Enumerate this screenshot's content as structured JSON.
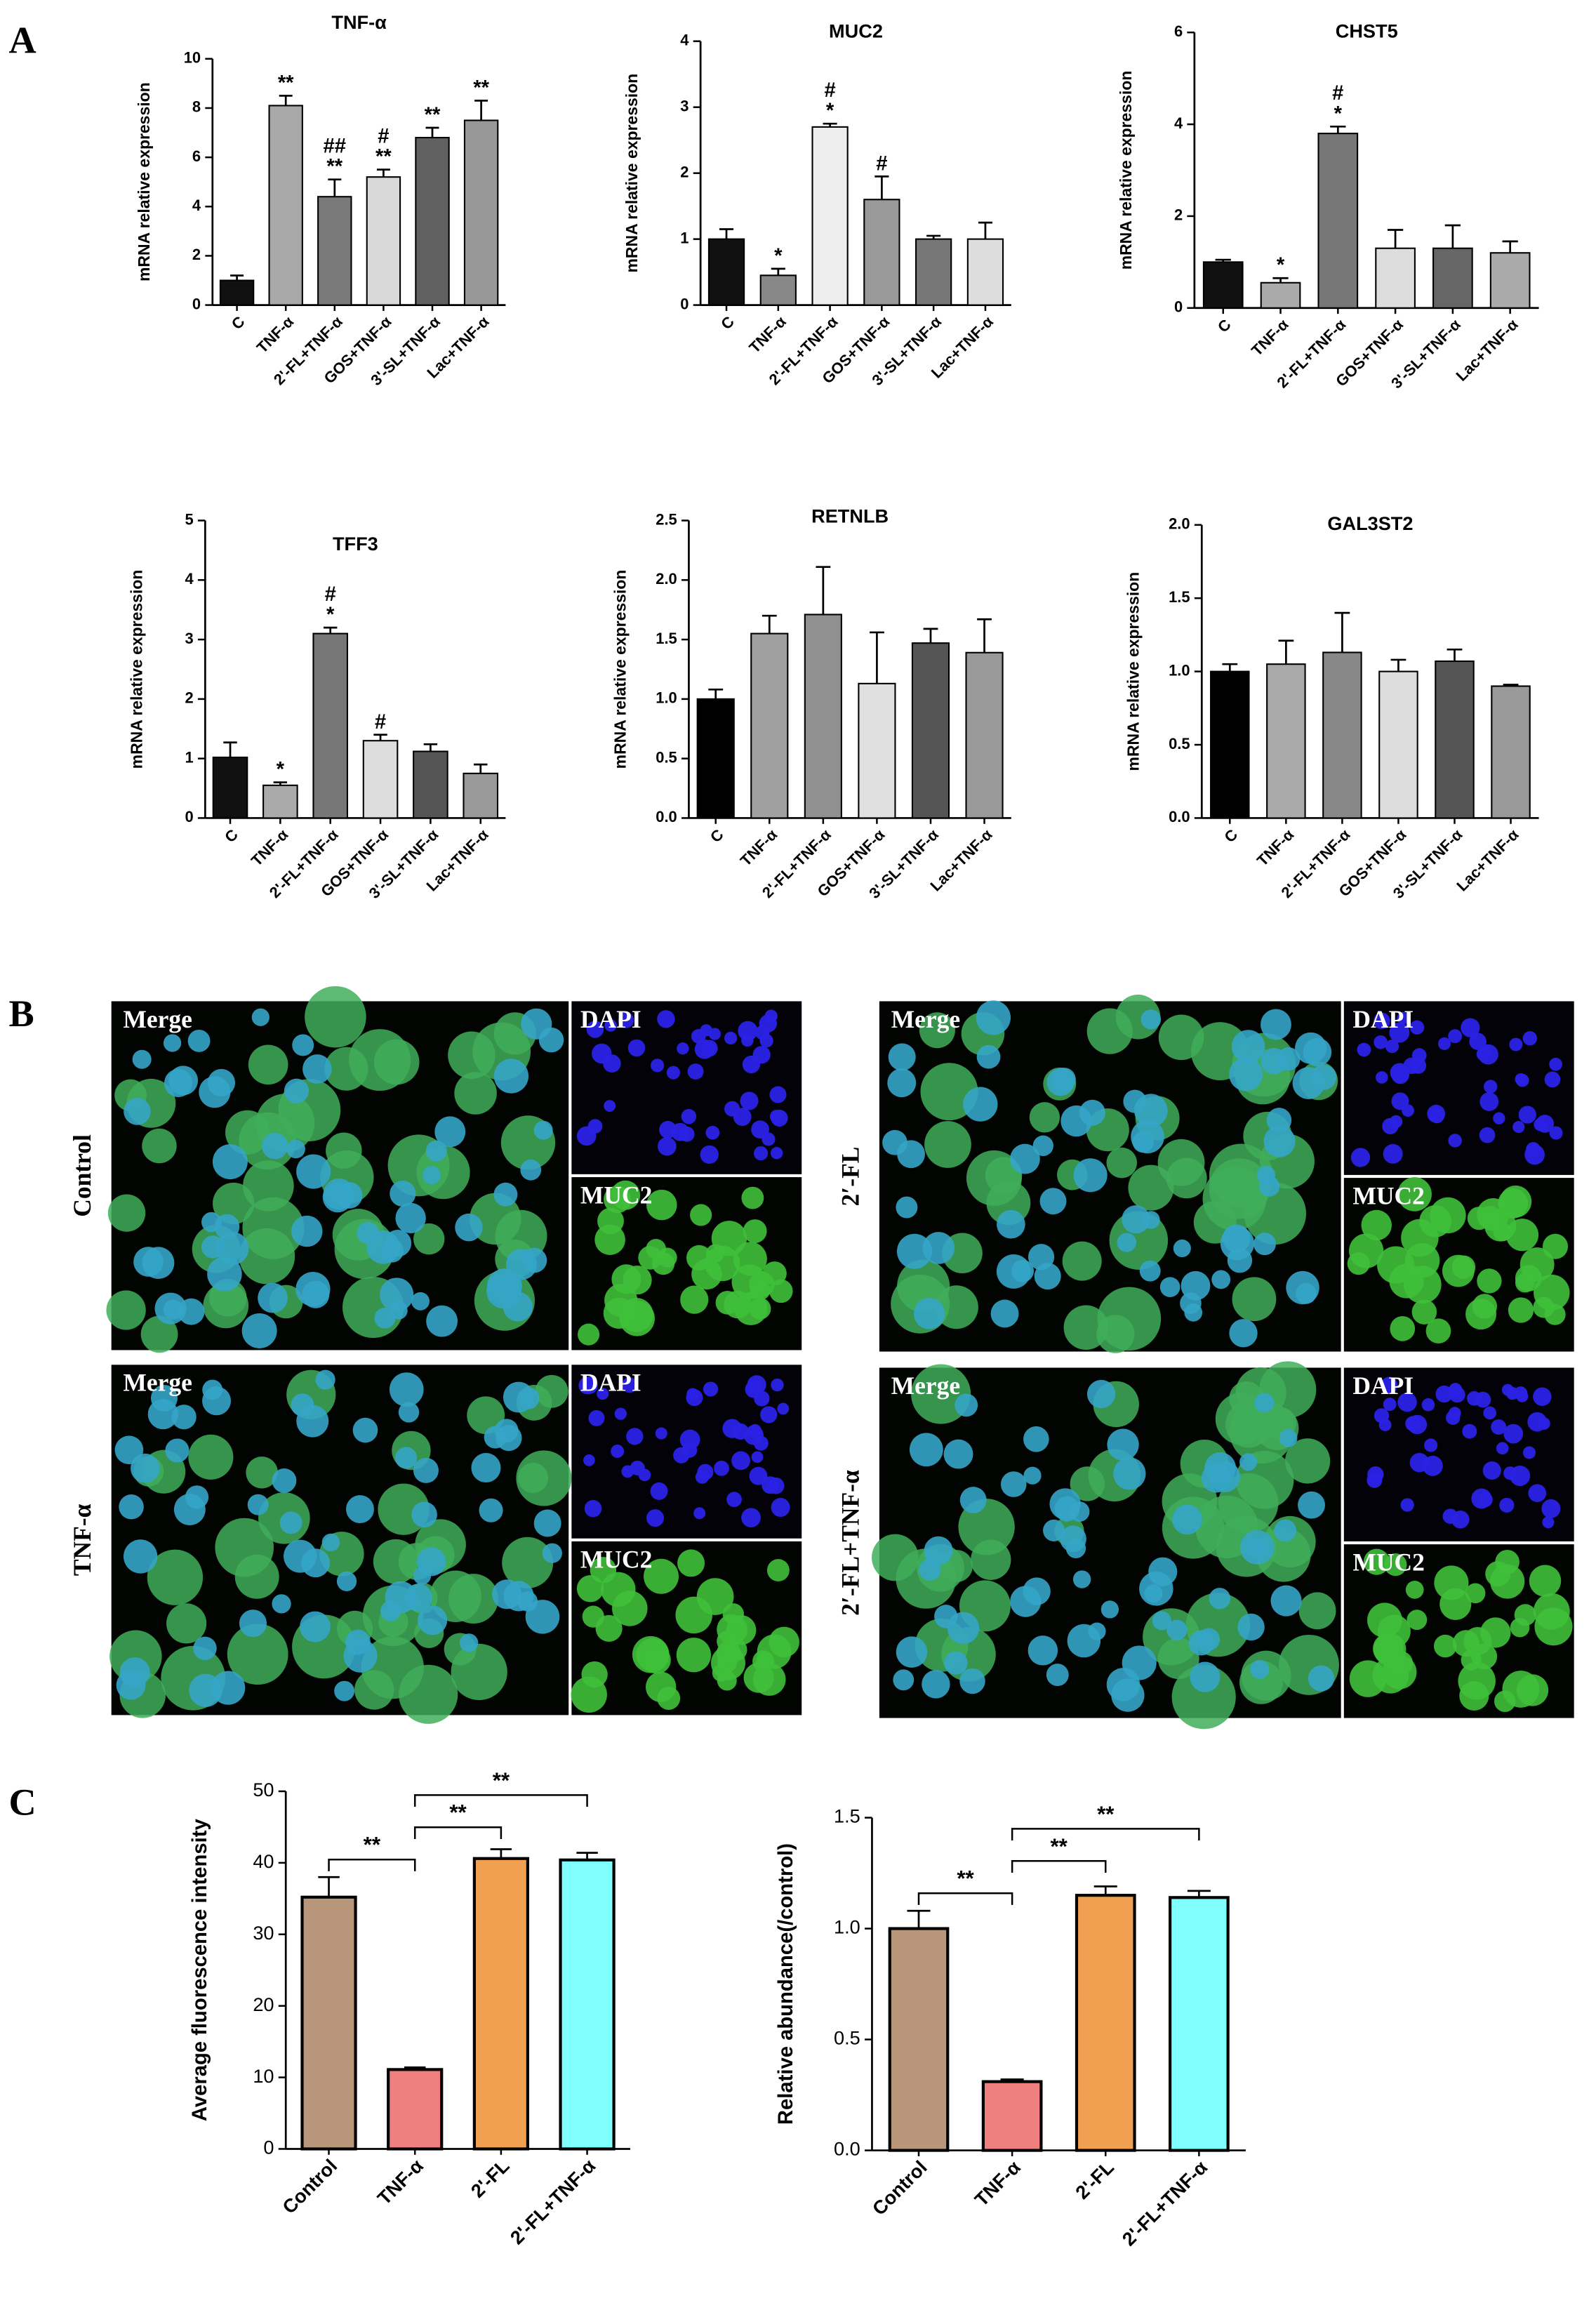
{
  "panel_labels": [
    "A",
    "B",
    "C"
  ],
  "micrographs": [
    {
      "row_label": "Control",
      "merge": "Merge",
      "dapi": "DAPI",
      "muc2": "MUC2"
    },
    {
      "row_label": "TNF-α",
      "merge": "Merge",
      "dapi": "DAPI",
      "muc2": "MUC2"
    },
    {
      "row_label": "2′-FL",
      "merge": "Merge",
      "dapi": "DAPI",
      "muc2": "MUC2"
    },
    {
      "row_label": "2′-FL+TNF-α",
      "merge": "Merge",
      "dapi": "DAPI",
      "muc2": "MUC2"
    }
  ],
  "chart_data": [
    {
      "type": "bar",
      "title": "TNF-α",
      "y_label": "mRNA relative expression",
      "categories": [
        "C",
        "TNF-α",
        "2'-FL+TNF-α",
        "GOS+TNF-α",
        "3'-SL+TNF-α",
        "Lac+TNF-α"
      ],
      "values": [
        1.0,
        8.1,
        4.4,
        5.2,
        6.8,
        7.5
      ],
      "errors": [
        0.2,
        0.4,
        0.7,
        0.3,
        0.4,
        0.8
      ],
      "colors": [
        "#111111",
        "#a8a8a8",
        "#7a7a7a",
        "#d8d8d8",
        "#606060",
        "#989898"
      ],
      "ylim": [
        0,
        10
      ],
      "yticks": [
        0,
        2,
        4,
        6,
        8,
        10
      ],
      "sig_marks": [
        [],
        [
          "**"
        ],
        [
          "**",
          "##"
        ],
        [
          "**",
          "#"
        ],
        [
          "**"
        ],
        [
          "**"
        ]
      ]
    },
    {
      "type": "bar",
      "title": "MUC2",
      "y_label": "mRNA relative expression",
      "categories": [
        "C",
        "TNF-α",
        "2'-FL+TNF-α",
        "GOS+TNF-α",
        "3'-SL+TNF-α",
        "Lac+TNF-α"
      ],
      "values": [
        1.0,
        0.45,
        2.7,
        1.6,
        1.0,
        1.0
      ],
      "errors": [
        0.15,
        0.1,
        0.05,
        0.35,
        0.05,
        0.25
      ],
      "colors": [
        "#111111",
        "#888888",
        "#eeeeee",
        "#999999",
        "#777777",
        "#dddddd"
      ],
      "ylim": [
        0,
        4
      ],
      "yticks": [
        0,
        1,
        2,
        3,
        4
      ],
      "sig_marks": [
        [],
        [
          "*"
        ],
        [
          "*",
          "#"
        ],
        [
          "#"
        ],
        [],
        []
      ]
    },
    {
      "type": "bar",
      "title": "CHST5",
      "y_label": "mRNA relative expression",
      "categories": [
        "C",
        "TNF-α",
        "2'-FL+TNF-α",
        "GOS+TNF-α",
        "3'-SL+TNF-α",
        "Lac+TNF-α"
      ],
      "values": [
        1.0,
        0.55,
        3.8,
        1.3,
        1.3,
        1.2
      ],
      "errors": [
        0.05,
        0.1,
        0.15,
        0.4,
        0.5,
        0.25
      ],
      "colors": [
        "#111111",
        "#aaaaaa",
        "#777777",
        "#dddddd",
        "#666666",
        "#aaaaaa"
      ],
      "ylim": [
        0,
        6
      ],
      "yticks": [
        0,
        2,
        4,
        6
      ],
      "sig_marks": [
        [],
        [
          "*"
        ],
        [
          "*",
          "#"
        ],
        [],
        [],
        []
      ]
    },
    {
      "type": "bar",
      "title": "TFF3",
      "y_label": "mRNA relative expression",
      "categories": [
        "C",
        "TNF-α",
        "2'-FL+TNF-α",
        "GOS+TNF-α",
        "3'-SL+TNF-α",
        "Lac+TNF-α"
      ],
      "values": [
        1.02,
        0.55,
        3.1,
        1.3,
        1.12,
        0.75
      ],
      "errors": [
        0.25,
        0.05,
        0.1,
        0.1,
        0.12,
        0.15
      ],
      "colors": [
        "#111111",
        "#aaaaaa",
        "#777777",
        "#dddddd",
        "#555555",
        "#999999"
      ],
      "ylim": [
        0,
        5
      ],
      "yticks": [
        0,
        1,
        2,
        3,
        4,
        5
      ],
      "sig_marks": [
        [],
        [
          "*"
        ],
        [
          "*",
          "#"
        ],
        [
          "#"
        ],
        [],
        []
      ]
    },
    {
      "type": "bar",
      "title": "RETNLB",
      "y_label": "mRNA relative expression",
      "categories": [
        "C",
        "TNF-α",
        "2'-FL+TNF-α",
        "GOS+TNF-α",
        "3'-SL+TNF-α",
        "Lac+TNF-α"
      ],
      "values": [
        1.0,
        1.55,
        1.71,
        1.13,
        1.47,
        1.39
      ],
      "errors": [
        0.08,
        0.15,
        0.4,
        0.43,
        0.12,
        0.28
      ],
      "colors": [
        "#000000",
        "#a0a0a0",
        "#909090",
        "#e0e0e0",
        "#555555",
        "#999999"
      ],
      "ylim": [
        0,
        2.5
      ],
      "yticks": [
        {
          "value": 0,
          "label": "0.0"
        },
        0.5,
        {
          "value": 1,
          "label": "1.0"
        },
        1.5,
        {
          "value": 2,
          "label": "2.0"
        },
        2.5
      ]
    },
    {
      "type": "bar",
      "title": "GAL3ST2",
      "y_label": "mRNA relative expression",
      "categories": [
        "C",
        "TNF-α",
        "2'-FL+TNF-α",
        "GOS+TNF-α",
        "3'-SL+TNF-α",
        "Lac+TNF-α"
      ],
      "values": [
        1.0,
        1.05,
        1.13,
        1.0,
        1.07,
        0.9
      ],
      "errors": [
        0.05,
        0.16,
        0.27,
        0.08,
        0.08,
        0.01
      ],
      "colors": [
        "#000000",
        "#aaaaaa",
        "#888888",
        "#dddddd",
        "#555555",
        "#999999"
      ],
      "ylim": [
        0,
        2
      ],
      "yticks": [
        {
          "value": 0,
          "label": "0.0"
        },
        0.5,
        {
          "value": 1,
          "label": "1.0"
        },
        1.5,
        {
          "value": 2,
          "label": "2.0"
        }
      ]
    },
    {
      "type": "bar",
      "y_label": "Average fluorescence intensity",
      "categories": [
        "Control",
        "TNF-α",
        "2'-FL",
        "2'-FL+TNF-α"
      ],
      "values": [
        35.2,
        11.1,
        40.6,
        40.4
      ],
      "errors": [
        2.8,
        0.3,
        1.3,
        1.0
      ],
      "colors": [
        "#b8967a",
        "#f08080",
        "#f0a050",
        "#80ffff"
      ],
      "ylim": [
        0,
        50
      ],
      "yticks": [
        0,
        10,
        20,
        30,
        40,
        50
      ],
      "comparisons": [
        {
          "pair": [
            0,
            1
          ],
          "label": "**"
        },
        {
          "pair": [
            1,
            2
          ],
          "label": "**"
        },
        {
          "pair": [
            1,
            3
          ],
          "label": "**"
        }
      ]
    },
    {
      "type": "bar",
      "y_label": "Relative abundance(/control)",
      "categories": [
        "Control",
        "TNF-α",
        "2'-FL",
        "2'-FL+TNF-α"
      ],
      "values": [
        1.0,
        0.31,
        1.15,
        1.14
      ],
      "errors": [
        0.08,
        0.01,
        0.04,
        0.03
      ],
      "colors": [
        "#b8967a",
        "#f08080",
        "#f0a050",
        "#80ffff"
      ],
      "ylim": [
        0,
        1.5
      ],
      "yticks": [
        {
          "value": 0,
          "label": "0.0"
        },
        0.5,
        {
          "value": 1,
          "label": "1.0"
        },
        1.5
      ],
      "comparisons": [
        {
          "pair": [
            0,
            1
          ],
          "label": "**"
        },
        {
          "pair": [
            1,
            2
          ],
          "label": "**"
        },
        {
          "pair": [
            1,
            3
          ],
          "label": "**"
        }
      ]
    }
  ]
}
